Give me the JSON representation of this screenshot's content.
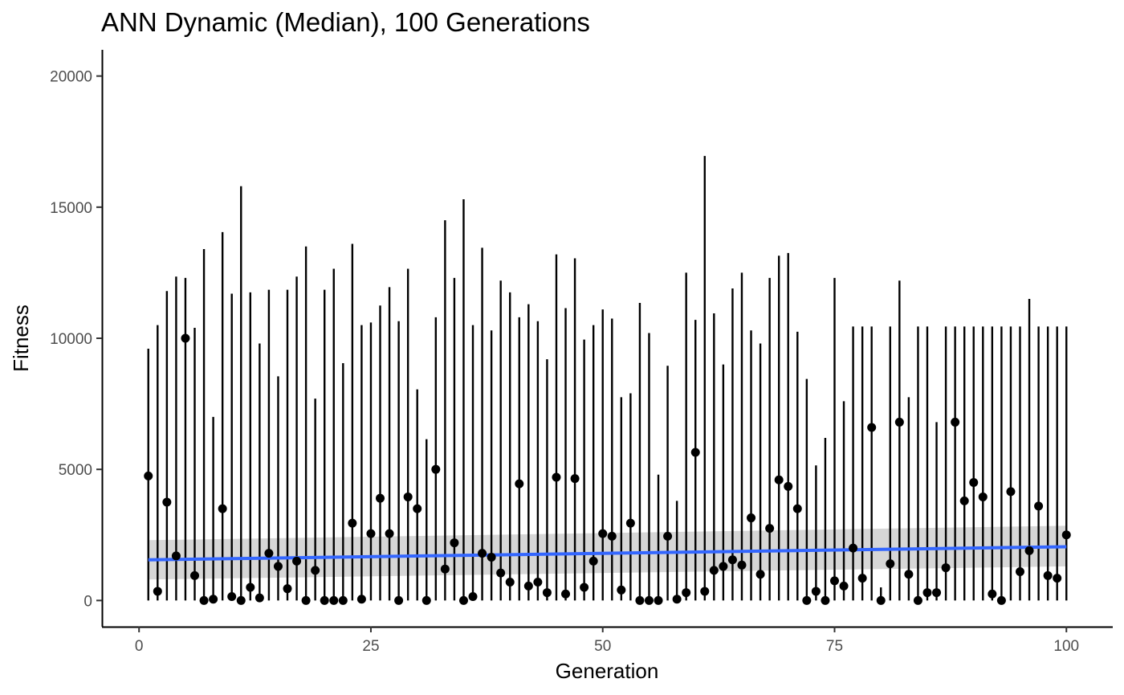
{
  "chart_data": {
    "type": "scatter",
    "title": "ANN Dynamic (Median), 100 Generations",
    "xlabel": "Generation",
    "ylabel": "Fitness",
    "xlim": [
      -4,
      105
    ],
    "ylim": [
      -1000,
      21000
    ],
    "xticks": [
      0,
      25,
      50,
      75,
      100
    ],
    "yticks": [
      0,
      5000,
      10000,
      15000,
      20000
    ],
    "grid": false,
    "legend": "none",
    "x": [
      1,
      2,
      3,
      4,
      5,
      6,
      7,
      8,
      9,
      10,
      11,
      12,
      13,
      14,
      15,
      16,
      17,
      18,
      19,
      20,
      21,
      22,
      23,
      24,
      25,
      26,
      27,
      28,
      29,
      30,
      31,
      32,
      33,
      34,
      35,
      36,
      37,
      38,
      39,
      40,
      41,
      42,
      43,
      44,
      45,
      46,
      47,
      48,
      49,
      50,
      51,
      52,
      53,
      54,
      55,
      56,
      57,
      58,
      59,
      60,
      61,
      62,
      63,
      64,
      65,
      66,
      67,
      68,
      69,
      70,
      71,
      72,
      73,
      74,
      75,
      76,
      77,
      78,
      79,
      80,
      81,
      82,
      83,
      84,
      85,
      86,
      87,
      88,
      89,
      90,
      91,
      92,
      93,
      94,
      95,
      96,
      97,
      98,
      99,
      100
    ],
    "median": [
      4750,
      350,
      3750,
      1700,
      10000,
      950,
      0,
      50,
      3500,
      150,
      0,
      500,
      100,
      1800,
      1300,
      450,
      1500,
      0,
      1150,
      0,
      0,
      0,
      2950,
      50,
      2550,
      3900,
      2550,
      0,
      3950,
      3500,
      0,
      5000,
      1200,
      2200,
      0,
      150,
      1800,
      1650,
      1050,
      700,
      4450,
      550,
      700,
      300,
      4700,
      250,
      4650,
      500,
      1500,
      2550,
      2450,
      400,
      2950,
      0,
      0,
      0,
      2450,
      50,
      300,
      5650,
      350,
      1150,
      1300,
      1550,
      1350,
      3150,
      1000,
      2750,
      4600,
      4350,
      3500,
      0,
      350,
      0,
      750,
      550,
      2000,
      850,
      6600,
      0,
      1400,
      6800,
      1000,
      0,
      300,
      300,
      1250,
      6800,
      3800,
      4500,
      3950,
      250,
      0,
      4150,
      1100,
      1900,
      3600,
      950,
      850,
      2500
    ],
    "range_max": [
      9600,
      10500,
      11800,
      12350,
      12300,
      10400,
      13400,
      7000,
      14050,
      11700,
      15800,
      11750,
      9800,
      11850,
      8550,
      11850,
      12350,
      13500,
      7700,
      11850,
      12650,
      9050,
      13600,
      10500,
      10600,
      11250,
      11950,
      10650,
      12650,
      8050,
      6150,
      10800,
      14500,
      12300,
      15300,
      10500,
      13450,
      10300,
      12200,
      11750,
      10800,
      11300,
      10650,
      9200,
      13200,
      11150,
      13050,
      9950,
      10500,
      11100,
      10750,
      7750,
      7900,
      11350,
      10200,
      4800,
      8950,
      3800,
      12500,
      10700,
      16950,
      10950,
      9000,
      11900,
      12500,
      10300,
      9800,
      12300,
      13150,
      13250,
      10250,
      8450,
      5150,
      6200,
      12300,
      7600,
      10450,
      10450,
      10450,
      500,
      10450,
      12200,
      7750,
      10450,
      10450,
      6800,
      10450,
      10450,
      10450,
      10450,
      10450,
      10450,
      10450,
      10450,
      10450,
      11500,
      10450,
      10450,
      10450,
      10450
    ],
    "range_min": 0,
    "trend": {
      "method": "lm",
      "x": [
        1,
        100
      ],
      "y": [
        1550,
        2050
      ],
      "ci_lower": [
        800,
        1300
      ],
      "ci_upper": [
        2300,
        2850
      ]
    },
    "colors": {
      "points": "#000000",
      "segments": "#000000",
      "trend": "#3366ff",
      "ci_band": "#999999"
    }
  }
}
